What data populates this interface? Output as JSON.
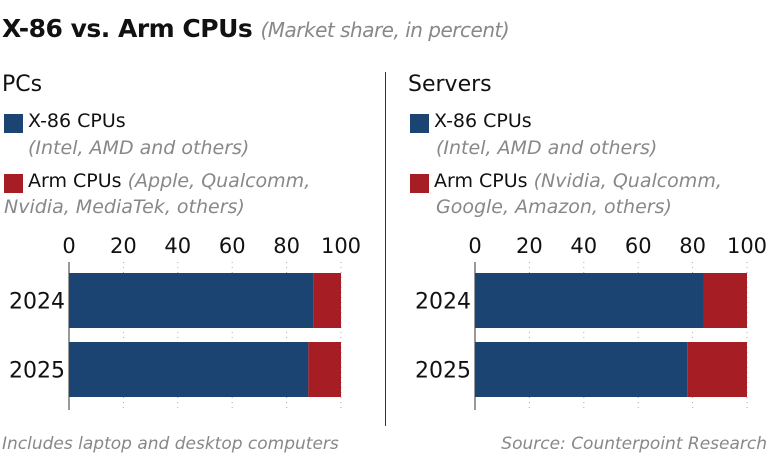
{
  "title": "X-86 vs. Arm CPUs",
  "subtitle": "(Market share, in percent)",
  "colors": {
    "x86": "#1b4472",
    "arm": "#a71d24"
  },
  "footnote": "Includes laptop and desktop computers",
  "source": "Source: Counterpoint Research",
  "chart_data": [
    {
      "type": "bar",
      "stacked": true,
      "orientation": "horizontal",
      "title": "PCs",
      "categories": [
        "2024",
        "2025"
      ],
      "xlim": [
        0,
        100
      ],
      "ticks": [
        "0",
        "20",
        "40",
        "60",
        "80",
        "100"
      ],
      "grid": true,
      "series": [
        {
          "name": "X-86 CPUs",
          "note": "(Intel, AMD and others)",
          "values": [
            90,
            88
          ]
        },
        {
          "name": "Arm CPUs",
          "note": "(Apple, Qualcomm,",
          "note2": "Nvidia, MediaTek, others)",
          "values": [
            10,
            12
          ]
        }
      ]
    },
    {
      "type": "bar",
      "stacked": true,
      "orientation": "horizontal",
      "title": "Servers",
      "categories": [
        "2024",
        "2025"
      ],
      "xlim": [
        0,
        100
      ],
      "ticks": [
        "0",
        "20",
        "40",
        "60",
        "80",
        "100"
      ],
      "grid": true,
      "series": [
        {
          "name": "X-86 CPUs",
          "note": "(Intel, AMD and others)",
          "values": [
            84,
            78
          ]
        },
        {
          "name": "Arm CPUs",
          "note": "(Nvidia, Qualcomm,",
          "note2": "Google, Amazon, others)",
          "values": [
            16,
            22
          ]
        }
      ]
    }
  ]
}
